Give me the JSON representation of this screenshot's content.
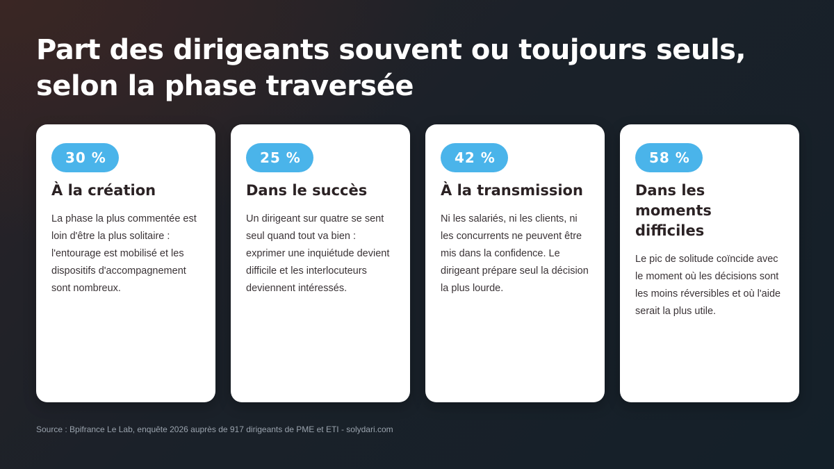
{
  "title": "Part des dirigeants souvent ou toujours seuls, selon la phase traversée",
  "cards": [
    {
      "percent": "30 %",
      "heading": "À la création",
      "text": "La phase la plus commentée est loin d'être la plus solitaire : l'entourage est mobilisé et les dispositifs d'accompagnement sont nombreux."
    },
    {
      "percent": "25 %",
      "heading": "Dans le succès",
      "text": "Un dirigeant sur quatre se sent seul quand tout va bien : exprimer une inquiétude devient difficile et les interlocuteurs deviennent intéressés."
    },
    {
      "percent": "42 %",
      "heading": "À la transmission",
      "text": "Ni les salariés, ni les clients, ni les concurrents ne peuvent être mis dans la confidence. Le dirigeant prépare seul la décision la plus lourde."
    },
    {
      "percent": "58 %",
      "heading": "Dans les moments difficiles",
      "text": "Le pic de solitude coïncide avec le moment où les décisions sont les moins réversibles et où l'aide serait la plus utile."
    }
  ],
  "source": "Source : Bpifrance Le Lab, enquête 2026 auprès de 917 dirigeants de PME et ETI - solydari.com",
  "colors": {
    "badge": "#4ab4ea",
    "card_background": "#ffffff",
    "heading_text": "#2b2224",
    "page_background": "#1b2129"
  }
}
